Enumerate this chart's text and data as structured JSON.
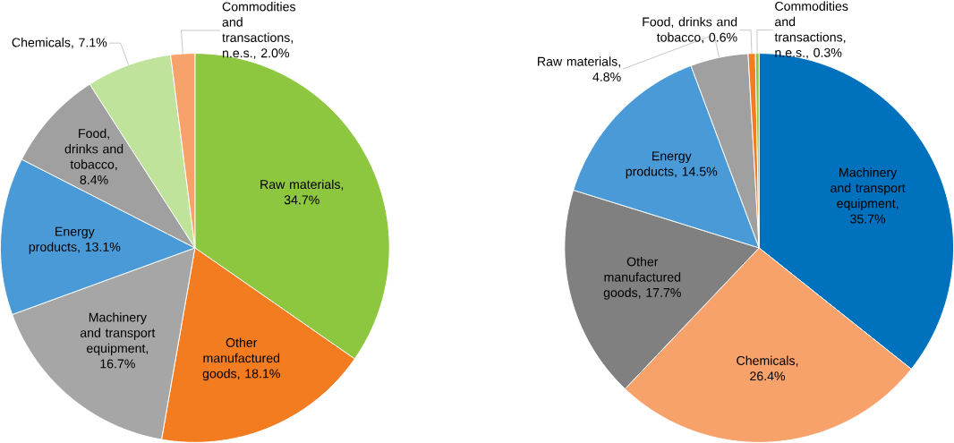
{
  "chart_data": [
    {
      "type": "pie",
      "categories": [
        "Raw materials, 34.7%",
        "Other manufactured goods, 18.1%",
        "Machinery and transport equipment, 16.7%",
        "Energy products, 13.1%",
        "Food, drinks and tobacco, 8.4%",
        "Chemicals, 7.1%",
        "Commodities and transactions, n.e.s., 2.0%"
      ],
      "values": [
        34.7,
        18.1,
        16.7,
        13.1,
        8.4,
        7.1,
        2.0
      ],
      "colors": [
        "#8dc63f",
        "#f47c20",
        "#a6a6a6",
        "#4a9ad8",
        "#a0a0a0",
        "#bfe39a",
        "#f7a26a"
      ]
    },
    {
      "type": "pie",
      "categories": [
        "Machinery and transport equipment, 35.7%",
        "Chemicals, 26.4%",
        "Other manufactured goods, 17.7%",
        "Energy products, 14.5%",
        "Raw materials, 4.8%",
        "Food, drinks and tobacco, 0.6%",
        "Commodities and transactions, n.e.s., 0.3%"
      ],
      "values": [
        35.7,
        26.4,
        17.7,
        14.5,
        4.8,
        0.6,
        0.3
      ],
      "colors": [
        "#0071bc",
        "#f7a26a",
        "#808080",
        "#4a9ad8",
        "#a0a0a0",
        "#f47c20",
        "#8dc63f"
      ]
    }
  ]
}
